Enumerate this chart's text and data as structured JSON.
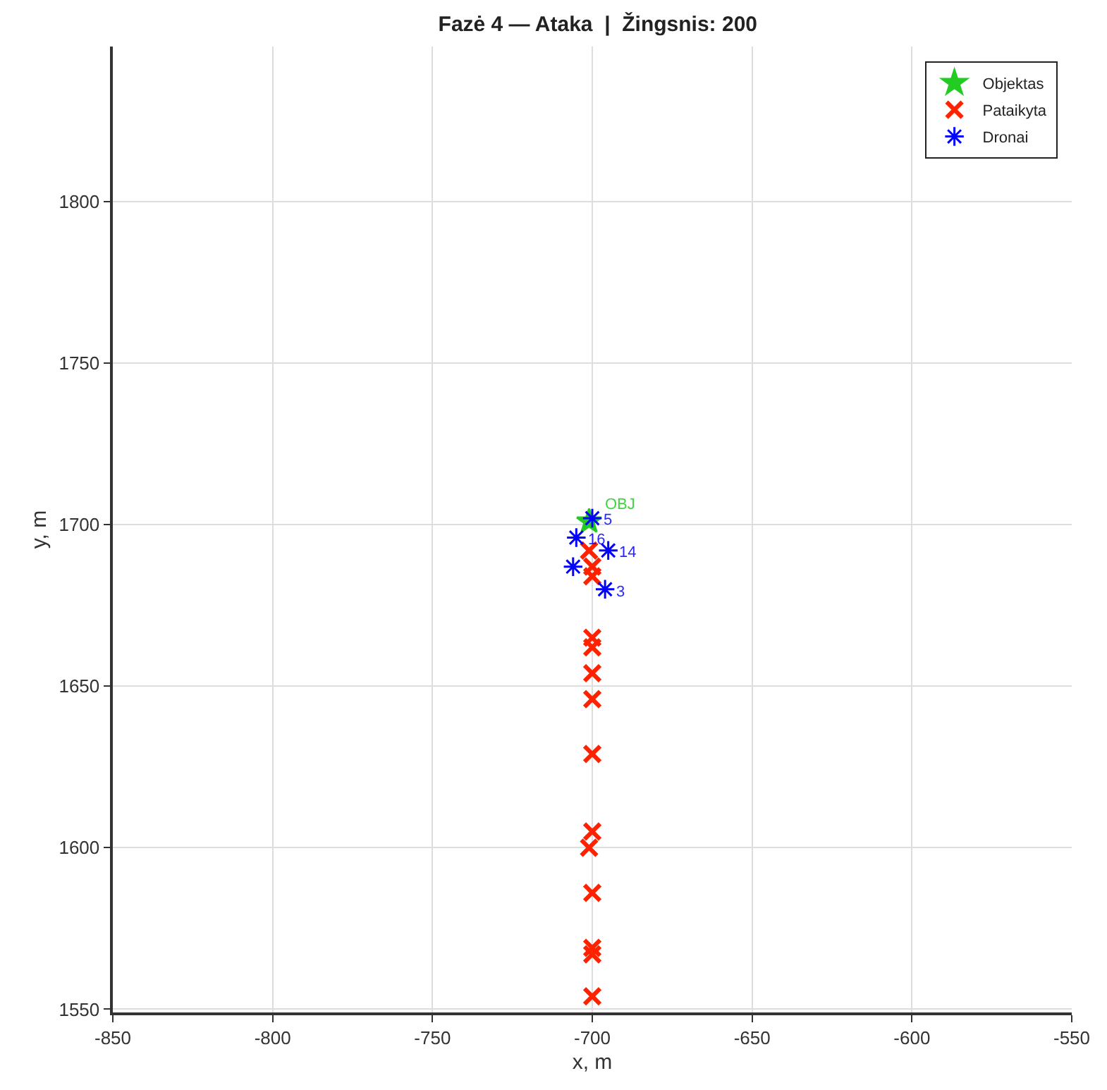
{
  "chart_data": {
    "type": "scatter",
    "title": "Fazė 4 — Ataka  |  Žingsnis: 200",
    "xlabel": "x, m",
    "ylabel": "y, m",
    "xlim": [
      -850,
      -550
    ],
    "xticks": [
      -850,
      -800,
      -750,
      -700,
      -650,
      -600,
      -550
    ],
    "ylim": [
      1549,
      1848
    ],
    "yticks": [
      1550,
      1600,
      1650,
      1700,
      1750,
      1800
    ],
    "grid": true,
    "legend": "top right",
    "series": [
      {
        "name": "Objektas",
        "color": "#22cc22",
        "marker": "star",
        "x": [
          -701
        ],
        "values": [
          1701
        ]
      },
      {
        "name": "Pataikyta",
        "color": "#ff2200",
        "marker": "cross",
        "x": [
          -701,
          -700,
          -700,
          -700,
          -700,
          -700,
          -700,
          -700,
          -700,
          -701,
          -700,
          -700,
          -700,
          -700
        ],
        "values": [
          1692,
          1687,
          1684,
          1665,
          1662,
          1654,
          1646,
          1629,
          1605,
          1600,
          1586,
          1569,
          1567,
          1554
        ]
      },
      {
        "name": "Dronai",
        "color": "#0000ff",
        "x": [
          -700,
          -705,
          -695,
          -706,
          -696
        ],
        "values": [
          1702,
          1696,
          1692,
          1687,
          1680
        ]
      }
    ],
    "annotations": [
      {
        "text": "OBJ",
        "x": -701,
        "y": 1701
      },
      {
        "text": "5",
        "x": -700,
        "y": 1702
      },
      {
        "text": "16",
        "x": -705,
        "y": 1696
      },
      {
        "text": "14",
        "x": -695,
        "y": 1692
      },
      {
        "text": "3",
        "x": -696,
        "y": 1680
      }
    ]
  }
}
